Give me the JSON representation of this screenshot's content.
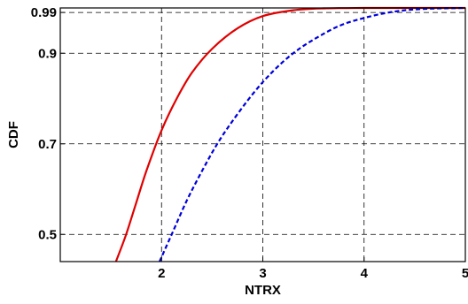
{
  "chart_data": {
    "type": "line",
    "xlabel": "NTRX",
    "ylabel": "CDF",
    "xlim": [
      1,
      5
    ],
    "ylim": [
      0.44,
      1.0
    ],
    "x_ticks": [
      2,
      3,
      4,
      5
    ],
    "x_tick_labels": [
      "2",
      "3",
      "4",
      "5"
    ],
    "y_ticks": [
      0.5,
      0.7,
      0.9,
      0.99
    ],
    "y_tick_labels": [
      "0.5",
      "0.7",
      "0.9",
      "0.99"
    ],
    "grid": true,
    "series": [
      {
        "style": "solid",
        "color": "#e00000",
        "x": [
          1.55,
          1.65,
          1.75,
          1.85,
          2.0,
          2.15,
          2.3,
          2.5,
          2.75,
          3.0,
          3.3,
          3.6,
          4.0,
          4.5,
          5.0
        ],
        "y": [
          0.44,
          0.5,
          0.57,
          0.64,
          0.73,
          0.8,
          0.857,
          0.91,
          0.955,
          0.982,
          0.995,
          0.999,
          1.0,
          1.0,
          1.0
        ]
      },
      {
        "style": "dashed",
        "color": "#0000dd",
        "x": [
          1.98,
          2.1,
          2.25,
          2.4,
          2.55,
          2.7,
          2.9,
          3.1,
          3.3,
          3.5,
          3.75,
          4.0,
          4.3,
          4.6,
          5.0
        ],
        "y": [
          0.44,
          0.5,
          0.575,
          0.64,
          0.7,
          0.75,
          0.81,
          0.86,
          0.9,
          0.93,
          0.96,
          0.978,
          0.992,
          0.998,
          1.0
        ]
      }
    ]
  }
}
